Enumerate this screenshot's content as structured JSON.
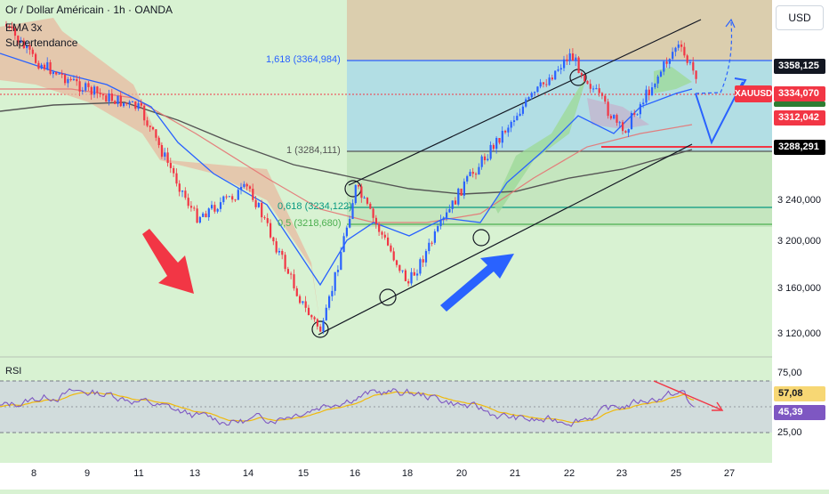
{
  "header": {
    "title": "Or / Dollar Américain · 1h · OANDA",
    "indicator_1": "EMA 3x",
    "indicator_2": "Supertendance"
  },
  "currency_button": "USD",
  "price_axis": {
    "ticks": [
      "3 240,000",
      "3 200,000",
      "3 160,000",
      "3 120,000"
    ],
    "labels": [
      {
        "text": "3358,125",
        "color": "#ffffff",
        "bg": "#131722"
      },
      {
        "text": "3334,070",
        "color": "#ffffff",
        "bg": "#f23645"
      },
      {
        "text": "3312,042",
        "color": "#ffffff",
        "bg": "#f23645"
      },
      {
        "text": "3288,291",
        "color": "#ffffff",
        "bg": "#000000"
      }
    ],
    "symbol_tag": "XAUUSD"
  },
  "fib_levels": [
    {
      "text": "1,618 (3364,984)",
      "color": "#2962ff"
    },
    {
      "text": "1 (3284,111)",
      "color": "#555555"
    },
    {
      "text": "0,618 (3234,122)",
      "color": "#089981"
    },
    {
      "text": "0,5 (3218,680)",
      "color": "#4caf50"
    }
  ],
  "rsi": {
    "label": "RSI",
    "axis_ticks": [
      "75,00",
      "25,00"
    ],
    "value_labels": [
      {
        "text": "57,08",
        "color": "#131722",
        "bg": "#f7d774"
      },
      {
        "text": "45,39",
        "color": "#ffffff",
        "bg": "#7e57c2"
      }
    ]
  },
  "time_axis": [
    "8",
    "9",
    "11",
    "13",
    "14",
    "15",
    "16",
    "18",
    "20",
    "21",
    "22",
    "23",
    "25",
    "27"
  ],
  "colors": {
    "background": "#d8f2d2",
    "up": "#2962ff",
    "down": "#f23645",
    "ema_fast": "#2962ff",
    "ema_slow": "#555555",
    "supertrend_bear_fill": "#e8b9a0",
    "supertrend_bull_fill": "#9ed99a"
  },
  "chart_data": {
    "type": "candlestick",
    "symbol": "XAUUSD",
    "timeframe": "1h",
    "x_ticks": [
      "8",
      "9",
      "11",
      "13",
      "14",
      "15",
      "16",
      "18",
      "20",
      "21",
      "22",
      "23",
      "25",
      "27"
    ],
    "ylim": [
      3100,
      3395
    ],
    "y_ticks": [
      3120,
      3160,
      3200,
      3240,
      3288.291,
      3312.042,
      3334.07,
      3358.125
    ],
    "close_path": [
      {
        "x": "8",
        "y": 3345
      },
      {
        "x": "9",
        "y": 3320
      },
      {
        "x": "11",
        "y": 3305
      },
      {
        "x": "13",
        "y": 3215
      },
      {
        "x": "14",
        "y": 3240
      },
      {
        "x": "15",
        "y": 3140
      },
      {
        "x": "15",
        "y": 3120
      },
      {
        "x": "16",
        "y": 3240
      },
      {
        "x": "18",
        "y": 3160
      },
      {
        "x": "20",
        "y": 3240
      },
      {
        "x": "21",
        "y": 3300
      },
      {
        "x": "22",
        "y": 3350
      },
      {
        "x": "23",
        "y": 3285
      },
      {
        "x": "25",
        "y": 3358
      },
      {
        "x": "25",
        "y": 3334
      }
    ],
    "horizontal_levels": [
      3364.984,
      3284.111,
      3234.122,
      3218.68,
      3288.291
    ],
    "rsi_series": {
      "name": "RSI",
      "ylim": [
        25,
        75
      ],
      "levels": [
        75,
        25
      ],
      "last": 45.39,
      "signal_last": 57.08
    }
  }
}
